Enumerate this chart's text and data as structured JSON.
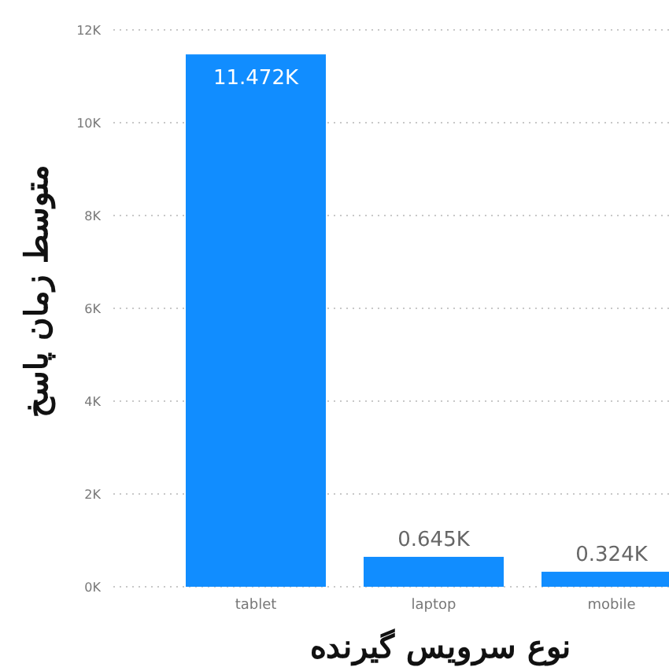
{
  "chart_data": {
    "type": "bar",
    "xlabel": "نوع سرویس گیرنده",
    "ylabel": "متوسط زمان پاسخ",
    "categories": [
      "tablet",
      "laptop",
      "mobile"
    ],
    "values": [
      11472,
      645,
      324
    ],
    "value_labels": [
      "11.472K",
      "0.645K",
      "0.324K"
    ],
    "color": "#118dff",
    "ylim": [
      0,
      12000
    ],
    "yticks": [
      {
        "value": 0,
        "label": "0K"
      },
      {
        "value": 2000,
        "label": "2K"
      },
      {
        "value": 4000,
        "label": "4K"
      },
      {
        "value": 6000,
        "label": "6K"
      },
      {
        "value": 8000,
        "label": "8K"
      },
      {
        "value": 10000,
        "label": "10K"
      },
      {
        "value": 12000,
        "label": "12K"
      }
    ],
    "grid": "y"
  }
}
